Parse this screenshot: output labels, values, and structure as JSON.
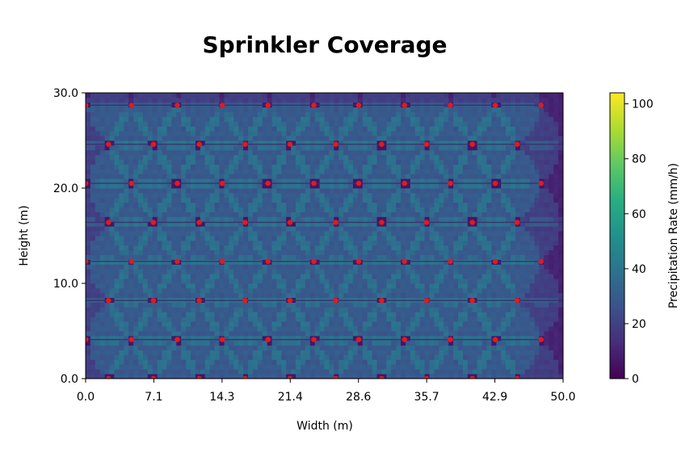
{
  "chart_data": {
    "type": "heatmap",
    "title": "Sprinkler Coverage",
    "xlabel": "Width (m)",
    "ylabel": "Height (m)",
    "xlim": [
      0,
      50
    ],
    "ylim": [
      0,
      30
    ],
    "x_ticks": [
      "0.0",
      "7.1",
      "14.3",
      "21.4",
      "28.6",
      "35.7",
      "42.9",
      "50.0"
    ],
    "y_ticks": [
      "0.0",
      "10.0",
      "20.0",
      "30.0"
    ],
    "colorbar": {
      "label": "Precipitation Rate (mm/h)",
      "min": 0,
      "max": 104,
      "ticks": [
        "0",
        "20",
        "40",
        "60",
        "80",
        "100"
      ],
      "colormap": "viridis"
    },
    "sprinkler_marker_color": "#e41a1c",
    "sprinkler_rows": [
      {
        "y": 0.0,
        "x": [
          2.4,
          7.1,
          11.9,
          16.7,
          21.4,
          26.2,
          31.0,
          35.7,
          40.5,
          45.2
        ]
      },
      {
        "y": 4.1,
        "x": [
          0.0,
          4.8,
          9.6,
          14.3,
          19.1,
          23.9,
          28.6,
          33.4,
          38.2,
          42.9,
          47.7
        ]
      },
      {
        "y": 8.2,
        "x": [
          2.4,
          7.1,
          11.9,
          16.7,
          21.4,
          26.2,
          31.0,
          35.7,
          40.5,
          45.2
        ]
      },
      {
        "y": 12.3,
        "x": [
          0.0,
          4.8,
          9.6,
          14.3,
          19.1,
          23.9,
          28.6,
          33.4,
          38.2,
          42.9,
          47.7
        ]
      },
      {
        "y": 16.4,
        "x": [
          2.4,
          7.1,
          11.9,
          16.7,
          21.4,
          26.2,
          31.0,
          35.7,
          40.5,
          45.2
        ]
      },
      {
        "y": 20.5,
        "x": [
          0.0,
          4.8,
          9.6,
          14.3,
          19.1,
          23.9,
          28.6,
          33.4,
          38.2,
          42.9,
          47.7
        ]
      },
      {
        "y": 24.6,
        "x": [
          2.4,
          7.1,
          11.9,
          16.7,
          21.4,
          26.2,
          31.0,
          35.7,
          40.5,
          45.2
        ]
      },
      {
        "y": 28.7,
        "x": [
          0.0,
          4.8,
          9.6,
          14.3,
          19.1,
          23.9,
          28.6,
          33.4,
          38.2,
          42.9,
          47.7
        ]
      }
    ]
  }
}
